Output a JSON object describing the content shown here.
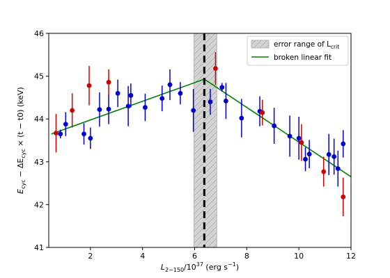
{
  "chart_data": {
    "type": "scatter",
    "xlabel": {
      "base": "L",
      "sub": "2−150",
      "rest": "/10",
      "sup": "37",
      "tail": " (erg s",
      "sup2": "−1",
      "end": ")"
    },
    "ylabel": {
      "base": "E",
      "sub": "cyc",
      "mid": " − ΔE",
      "sub2": "cyc",
      "end": " × (t − t0) (keV)"
    },
    "xlim": [
      0.4,
      12
    ],
    "ylim": [
      41,
      46
    ],
    "xticks": [
      2,
      4,
      6,
      8,
      10,
      12
    ],
    "yticks": [
      41,
      42,
      43,
      44,
      45,
      46
    ],
    "grid": false,
    "legend": {
      "placement": "top-right",
      "entries": [
        {
          "label_base": "error range of L",
          "label_sub": "crit",
          "style": "hatched-band"
        },
        {
          "label": "broken linear fit",
          "style": "line",
          "color": "#008000"
        }
      ]
    },
    "critical": {
      "x": 6.37,
      "band": [
        5.97,
        6.85
      ]
    },
    "fit": {
      "color": "#008000",
      "points": [
        [
          0.5,
          43.65
        ],
        [
          6.37,
          44.93
        ],
        [
          12.0,
          42.65
        ]
      ]
    },
    "colors": {
      "blue": "#0000cd",
      "red": "#cc0000",
      "band_fill": "#d3d3d3",
      "band_hatch": "#a9a9a9"
    },
    "series": [
      {
        "color": "blue",
        "points": [
          {
            "x": 0.85,
            "y": 43.65,
            "err": 0.1
          },
          {
            "x": 1.05,
            "y": 43.88,
            "err": 0.28
          },
          {
            "x": 1.75,
            "y": 43.65,
            "err": 0.25
          },
          {
            "x": 2.0,
            "y": 43.55,
            "err": 0.25
          },
          {
            "x": 2.35,
            "y": 44.22,
            "err": 0.4
          },
          {
            "x": 2.7,
            "y": 44.23,
            "err": 0.35
          },
          {
            "x": 3.05,
            "y": 44.6,
            "err": 0.32
          },
          {
            "x": 3.45,
            "y": 44.3,
            "err": 0.47
          },
          {
            "x": 3.55,
            "y": 44.55,
            "err": 0.28
          },
          {
            "x": 4.1,
            "y": 44.27,
            "err": 0.32
          },
          {
            "x": 4.75,
            "y": 44.48,
            "err": 0.3
          },
          {
            "x": 5.05,
            "y": 44.8,
            "err": 0.36
          },
          {
            "x": 5.45,
            "y": 44.6,
            "err": 0.26
          },
          {
            "x": 5.95,
            "y": 44.2,
            "err": 0.5
          },
          {
            "x": 6.6,
            "y": 44.4,
            "err": 0.3
          },
          {
            "x": 7.05,
            "y": 44.74,
            "err": 0.1
          },
          {
            "x": 7.2,
            "y": 44.42,
            "err": 0.42
          },
          {
            "x": 7.8,
            "y": 44.02,
            "err": 0.45
          },
          {
            "x": 8.5,
            "y": 44.18,
            "err": 0.35
          },
          {
            "x": 9.05,
            "y": 43.84,
            "err": 0.42
          },
          {
            "x": 9.65,
            "y": 43.6,
            "err": 0.48
          },
          {
            "x": 10.0,
            "y": 43.55,
            "err": 0.5
          },
          {
            "x": 10.25,
            "y": 43.06,
            "err": 0.28
          },
          {
            "x": 10.4,
            "y": 43.18,
            "err": 0.33
          },
          {
            "x": 11.15,
            "y": 43.17,
            "err": 0.48
          },
          {
            "x": 11.35,
            "y": 43.12,
            "err": 0.42
          },
          {
            "x": 11.5,
            "y": 42.84,
            "err": 0.42
          },
          {
            "x": 11.7,
            "y": 43.42,
            "err": 0.32
          }
        ]
      },
      {
        "color": "red",
        "points": [
          {
            "x": 0.68,
            "y": 43.67,
            "err": 0.45
          },
          {
            "x": 1.3,
            "y": 44.2,
            "err": 0.4
          },
          {
            "x": 1.95,
            "y": 44.78,
            "err": 0.46
          },
          {
            "x": 2.7,
            "y": 44.86,
            "err": 0.3
          },
          {
            "x": 6.8,
            "y": 45.18,
            "err": 0.38
          },
          {
            "x": 8.6,
            "y": 44.15,
            "err": 0.3
          },
          {
            "x": 10.1,
            "y": 43.45,
            "err": 0.43
          },
          {
            "x": 10.95,
            "y": 42.77,
            "err": 0.35
          },
          {
            "x": 11.7,
            "y": 42.18,
            "err": 0.45
          }
        ]
      }
    ]
  }
}
